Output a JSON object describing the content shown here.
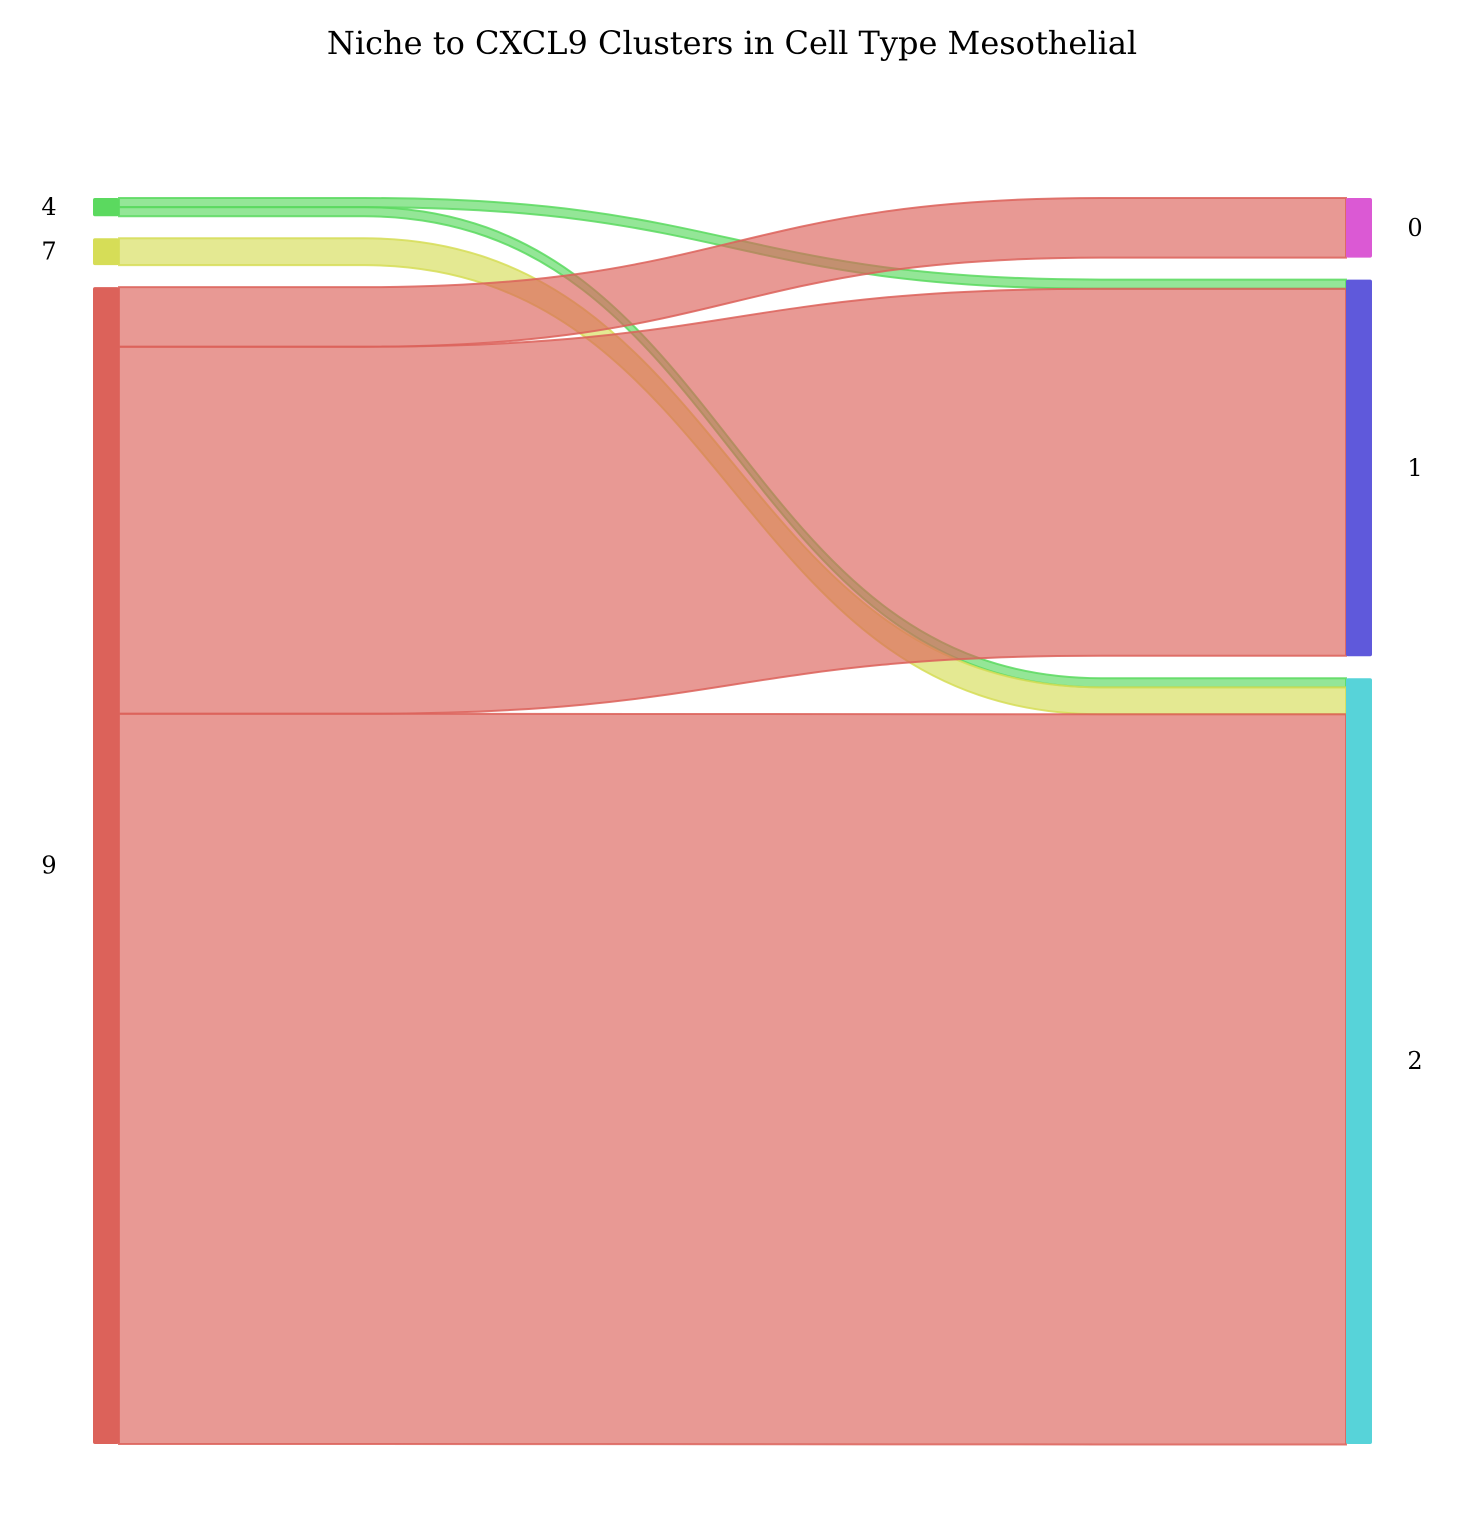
{
  "chart_data": {
    "type": "sankey",
    "title": "Niche to CXCL9 Clusters in Cell Type Mesothelial",
    "left_nodes": [
      {
        "name": "4",
        "total": 1.9,
        "color": "#5bd95f"
      },
      {
        "name": "7",
        "total": 2.8,
        "color": "#d6dd57"
      },
      {
        "name": "9",
        "total": 120.4,
        "color": "#dc625a"
      }
    ],
    "right_nodes": [
      {
        "name": "0",
        "total": 6.2,
        "color": "#db59d4"
      },
      {
        "name": "1",
        "total": 39.2,
        "color": "#5f59db"
      },
      {
        "name": "2",
        "total": 79.7,
        "color": "#57d3d9"
      }
    ],
    "flows": [
      {
        "source": "4",
        "target": "1",
        "value": 0.95
      },
      {
        "source": "4",
        "target": "2",
        "value": 0.95
      },
      {
        "source": "7",
        "target": "2",
        "value": 2.8
      },
      {
        "source": "9",
        "target": "0",
        "value": 6.2
      },
      {
        "source": "9",
        "target": "1",
        "value": 38.2
      },
      {
        "source": "9",
        "target": "2",
        "value": 76.0
      }
    ]
  }
}
